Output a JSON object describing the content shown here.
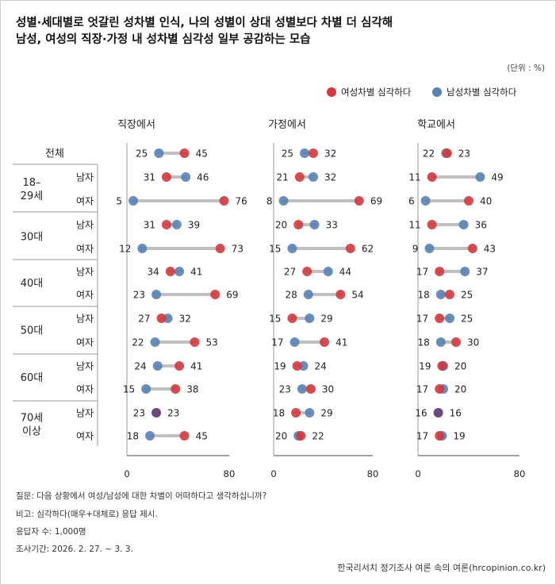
{
  "title_line1": "성별·세대별로 엇갈린 성차별 인식, 나의 성별이 상대 성별보다 차별 더 심각해",
  "title_line2": "남성, 여성의 직장·가정 내 성차별 심각성 일부 공감하는 모습",
  "unit": "(단위 : %)",
  "legend": {
    "female": "여성차별 심각하다",
    "male": "남성차별 심각하다"
  },
  "colors": {
    "female": "#d0383e",
    "male": "#5a82b5",
    "overlap": "#6b4a7a",
    "connector": "#bfbfbf"
  },
  "groups": [
    {
      "label": "전체"
    },
    {
      "label": "18–\n29세"
    },
    {
      "label": "30대"
    },
    {
      "label": "40대"
    },
    {
      "label": "50대"
    },
    {
      "label": "60대"
    },
    {
      "label": "70세\n이상"
    }
  ],
  "chart_data": {
    "type": "dumbbell",
    "xlim": [
      0,
      80
    ],
    "x_ticks": [
      0,
      80
    ],
    "panels": [
      "직장에서",
      "가정에서",
      "학교에서"
    ],
    "rows": [
      {
        "group": "전체",
        "sub": ""
      },
      {
        "group": "18–29세",
        "sub": "남자"
      },
      {
        "group": "18–29세",
        "sub": "여자"
      },
      {
        "group": "30대",
        "sub": "남자"
      },
      {
        "group": "30대",
        "sub": "여자"
      },
      {
        "group": "40대",
        "sub": "남자"
      },
      {
        "group": "40대",
        "sub": "여자"
      },
      {
        "group": "50대",
        "sub": "남자"
      },
      {
        "group": "50대",
        "sub": "여자"
      },
      {
        "group": "60대",
        "sub": "남자"
      },
      {
        "group": "60대",
        "sub": "여자"
      },
      {
        "group": "70세 이상",
        "sub": "남자"
      },
      {
        "group": "70세 이상",
        "sub": "여자"
      }
    ],
    "series": [
      {
        "name": "여성차별 심각하다",
        "panel_values": [
          [
            45,
            31,
            76,
            31,
            73,
            34,
            69,
            27,
            53,
            41,
            38,
            23,
            45
          ],
          [
            32,
            21,
            69,
            20,
            62,
            27,
            54,
            15,
            41,
            19,
            30,
            18,
            22
          ],
          [
            23,
            11,
            40,
            11,
            43,
            17,
            25,
            17,
            30,
            19,
            17,
            16,
            17
          ]
        ]
      },
      {
        "name": "남성차별 심각하다",
        "panel_values": [
          [
            25,
            46,
            5,
            39,
            12,
            41,
            23,
            32,
            22,
            24,
            15,
            23,
            18
          ],
          [
            25,
            32,
            8,
            33,
            15,
            44,
            28,
            29,
            17,
            24,
            23,
            29,
            20
          ],
          [
            22,
            49,
            6,
            36,
            9,
            37,
            18,
            25,
            18,
            20,
            20,
            16,
            19
          ]
        ]
      }
    ]
  },
  "notes": [
    "질문: 다음 상황에서 여성/남성에 대한 차별이 어떠하다고 생각하십니까?",
    "비고: 심각하다(매우+대체로) 응답 제시.",
    "응답자 수: 1,000명",
    "조사기간: 2026. 2. 27. ~ 3. 3."
  ],
  "source": "한국리서치 정기조사 여론 속의 여론(hrcopinion.co.kr)"
}
